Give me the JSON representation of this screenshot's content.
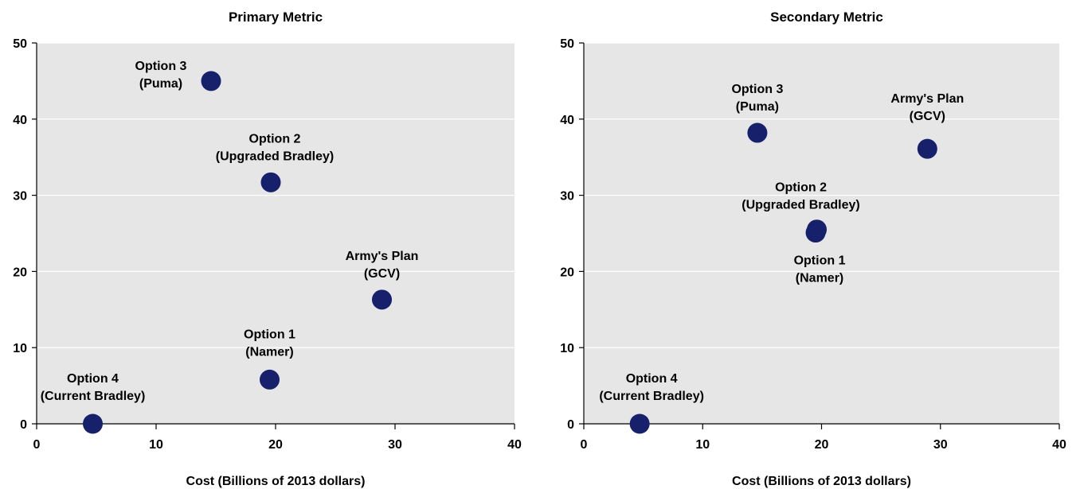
{
  "chart_data": [
    {
      "type": "scatter",
      "title": "Primary Metric",
      "xlabel": "Cost (Billions of 2013 dollars)",
      "ylabel": "",
      "xlim": [
        0,
        40
      ],
      "ylim": [
        0,
        50
      ],
      "xticks": [
        "0",
        "10",
        "20",
        "30",
        "40"
      ],
      "yticks": [
        "0",
        "10",
        "20",
        "30",
        "40",
        "50"
      ],
      "grid": "horizontal",
      "plot_background": "#e6e6e6",
      "marker_color": "#16206b",
      "points": [
        {
          "x": 4.7,
          "y": 0,
          "label": [
            "Option 4",
            "(Current Bradley)"
          ]
        },
        {
          "x": 19.5,
          "y": 5.8,
          "label": [
            "Option 1",
            "(Namer)"
          ]
        },
        {
          "x": 19.6,
          "y": 31.7,
          "label": [
            "Option 2",
            "(Upgraded Bradley)"
          ]
        },
        {
          "x": 14.6,
          "y": 45,
          "label": [
            "Option 3",
            "(Puma)"
          ]
        },
        {
          "x": 28.9,
          "y": 16.3,
          "label": [
            "Army's Plan",
            "(GCV)"
          ]
        }
      ]
    },
    {
      "type": "scatter",
      "title": "Secondary Metric",
      "xlabel": "Cost (Billions of 2013 dollars)",
      "ylabel": "",
      "xlim": [
        0,
        40
      ],
      "ylim": [
        0,
        50
      ],
      "xticks": [
        "0",
        "10",
        "20",
        "30",
        "40"
      ],
      "yticks": [
        "0",
        "10",
        "20",
        "30",
        "40",
        "50"
      ],
      "grid": "horizontal",
      "plot_background": "#e6e6e6",
      "marker_color": "#16206b",
      "points": [
        {
          "x": 4.7,
          "y": 0,
          "label": [
            "Option 4",
            "(Current Bradley)"
          ]
        },
        {
          "x": 19.5,
          "y": 25.1,
          "label": [
            "Option 1",
            "(Namer)"
          ]
        },
        {
          "x": 19.6,
          "y": 25.5,
          "label": [
            "Option 2",
            "(Upgraded Bradley)"
          ]
        },
        {
          "x": 14.6,
          "y": 38.2,
          "label": [
            "Option 3",
            "(Puma)"
          ]
        },
        {
          "x": 28.9,
          "y": 36.1,
          "label": [
            "Army's Plan",
            "(GCV)"
          ]
        }
      ]
    }
  ]
}
